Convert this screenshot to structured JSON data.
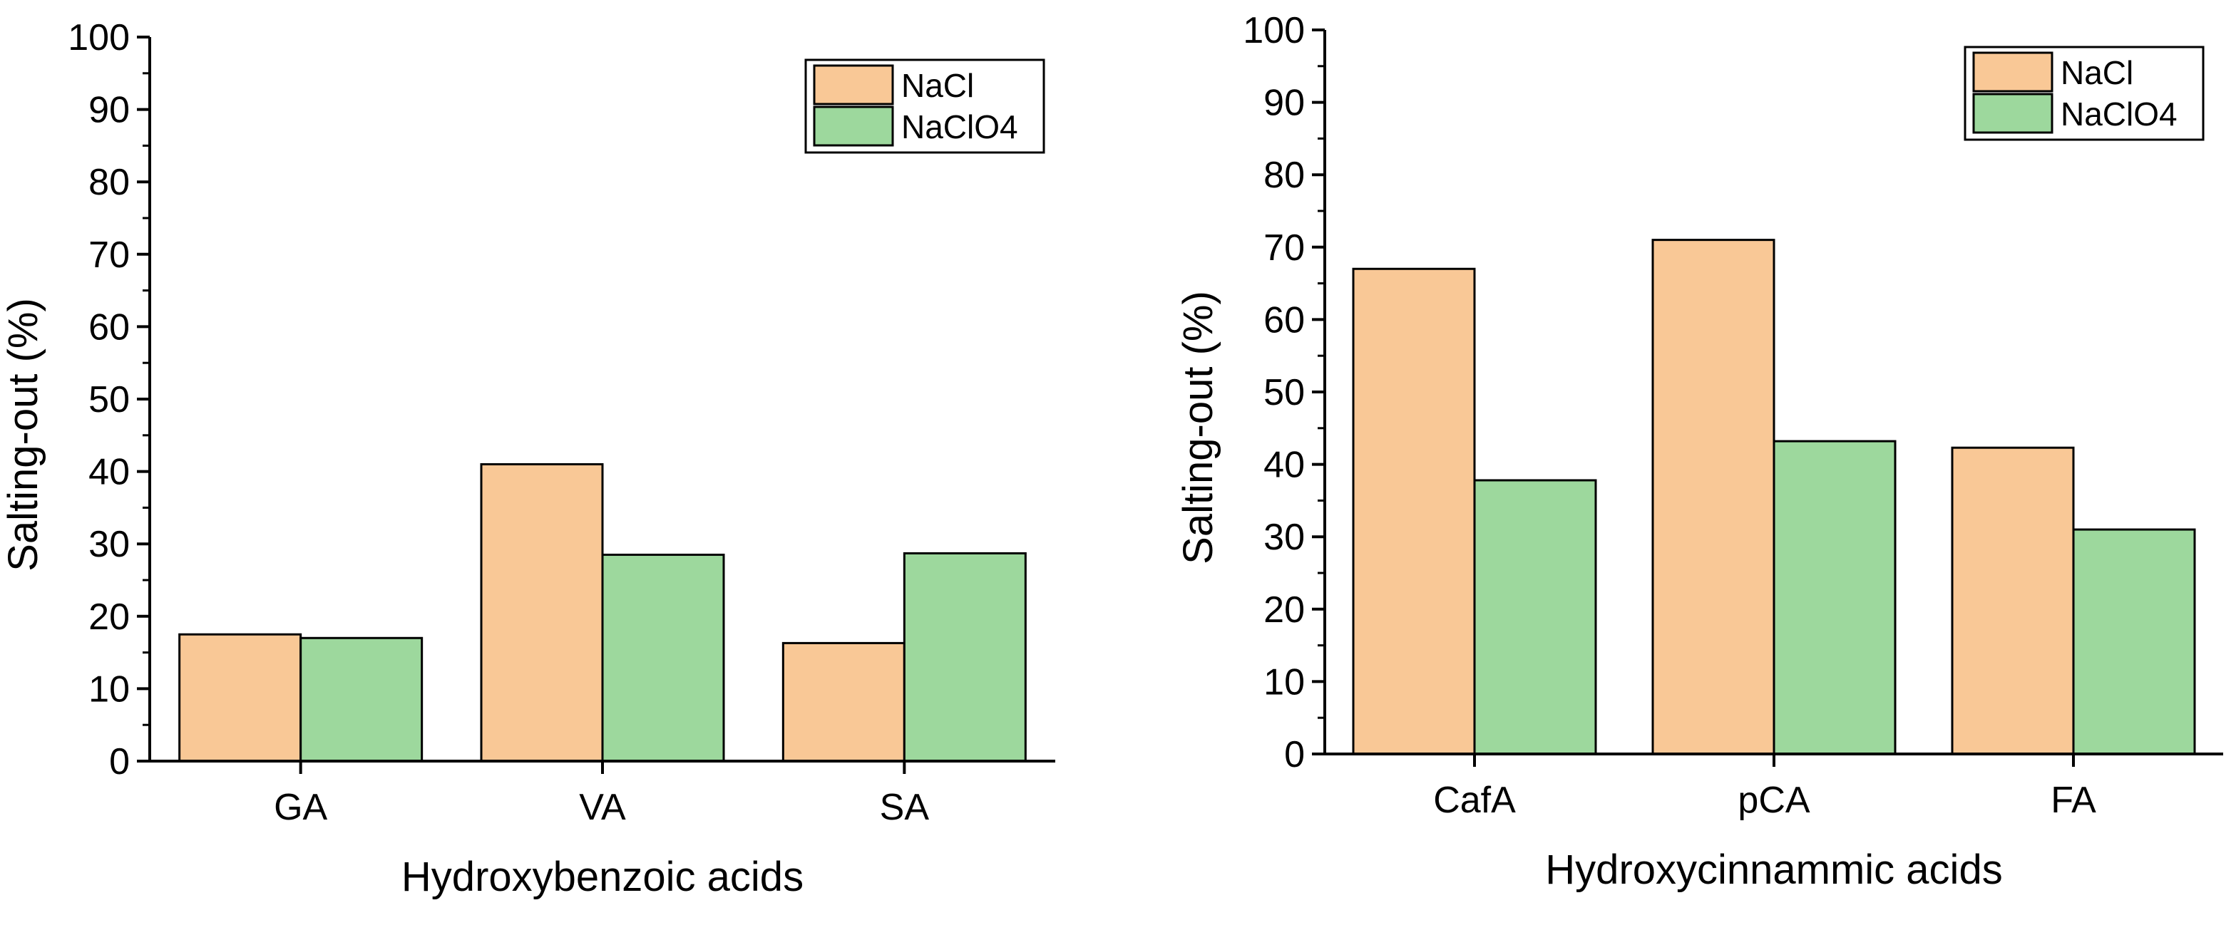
{
  "colors": {
    "nacl": "#f9c896",
    "naclo4": "#9dd89d",
    "axis": "#000000"
  },
  "chart_data": [
    {
      "type": "bar",
      "title": "",
      "xlabel": "Hydroxybenzoic acids",
      "ylabel": "Salting-out (%)",
      "ylim": [
        0,
        100
      ],
      "yticks": [
        0,
        10,
        20,
        30,
        40,
        50,
        60,
        70,
        80,
        90,
        100
      ],
      "categories": [
        "GA",
        "VA",
        "SA"
      ],
      "legend_position": "top-right",
      "series": [
        {
          "name": "NaCl",
          "color_key": "nacl",
          "values": [
            17.5,
            41,
            16.3
          ]
        },
        {
          "name": "NaClO4",
          "color_key": "naclo4",
          "values": [
            17,
            28.5,
            28.7
          ]
        }
      ]
    },
    {
      "type": "bar",
      "title": "",
      "xlabel": "Hydroxycinnammic acids",
      "ylabel": "Salting-out (%)",
      "ylim": [
        0,
        100
      ],
      "yticks": [
        0,
        10,
        20,
        30,
        40,
        50,
        60,
        70,
        80,
        90,
        100
      ],
      "categories": [
        "CafA",
        "pCA",
        "FA"
      ],
      "legend_position": "top-right",
      "series": [
        {
          "name": "NaCl",
          "color_key": "nacl",
          "values": [
            67,
            71,
            42.3
          ]
        },
        {
          "name": "NaClO4",
          "color_key": "naclo4",
          "values": [
            37.8,
            43.2,
            31
          ]
        }
      ]
    }
  ]
}
